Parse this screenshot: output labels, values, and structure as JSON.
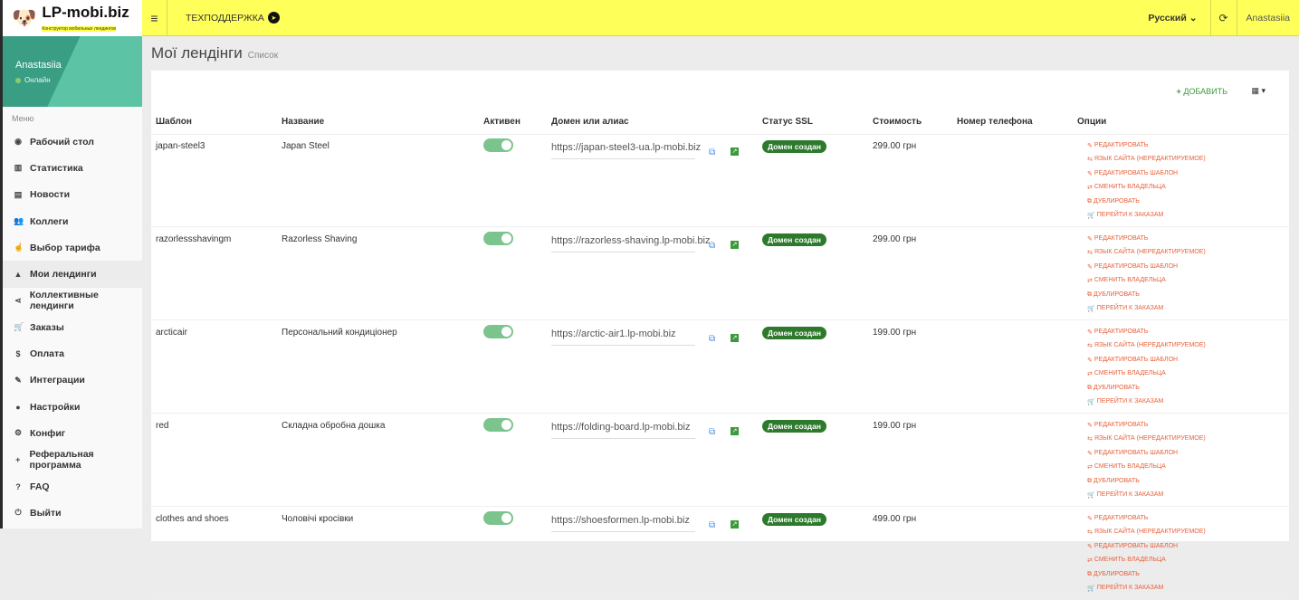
{
  "logo": {
    "brand": "LP-mobi.biz",
    "tagline": "Конструктор мобильных лендингов"
  },
  "user": {
    "name": "Anastasiia",
    "status": "Онлайн"
  },
  "menu_heading": "Меню",
  "menu": [
    {
      "label": "Рабочий стол",
      "icon": "dashboard-icon",
      "glyph": "◉"
    },
    {
      "label": "Статистика",
      "icon": "bar-chart-icon",
      "glyph": "▥"
    },
    {
      "label": "Новости",
      "icon": "newspaper-icon",
      "glyph": "▤"
    },
    {
      "label": "Коллеги",
      "icon": "users-icon",
      "glyph": "👥"
    },
    {
      "label": "Выбор тарифа",
      "icon": "hand-pointer-icon",
      "glyph": "☝"
    },
    {
      "label": "Мои лендинги",
      "icon": "landing-icon",
      "glyph": "▲"
    },
    {
      "label": "Коллективные лендинги",
      "icon": "share-icon",
      "glyph": "⋖"
    },
    {
      "label": "Заказы",
      "icon": "cart-icon",
      "glyph": "🛒"
    },
    {
      "label": "Оплата",
      "icon": "dollar-icon",
      "glyph": "$"
    },
    {
      "label": "Интеграции",
      "icon": "plug-icon",
      "glyph": "✎"
    },
    {
      "label": "Настройки",
      "icon": "user-icon",
      "glyph": "●"
    },
    {
      "label": "Конфиг",
      "icon": "cogs-icon",
      "glyph": "⚙"
    },
    {
      "label": "Реферальная программа",
      "icon": "user-plus-icon",
      "glyph": "+"
    },
    {
      "label": "FAQ",
      "icon": "question-icon",
      "glyph": "?"
    },
    {
      "label": "Выйти",
      "icon": "power-icon",
      "glyph": "⏻"
    }
  ],
  "header": {
    "support": "ТЕХПОДДЕРЖКА",
    "language": "Русский",
    "username": "Anastasiia"
  },
  "page": {
    "title": "Мої лендінги",
    "subtitle": "Список",
    "add": "ДОБАВИТЬ"
  },
  "columns": [
    "Шаблон",
    "Название",
    "Активен",
    "Домен или алиас",
    "Статус SSL",
    "Стоимость",
    "Номер телефона",
    "Опции"
  ],
  "options": [
    "РЕДАКТИРОВАТЬ",
    "ЯЗЫК САЙТА (НЕРЕДАКТИРУЕМОЕ)",
    "РЕДАКТИРОВАТЬ ШАБЛОН",
    "СМЕНИТЬ ВЛАДЕЛЬЦА",
    "ДУБЛИРОВАТЬ",
    "ПЕРЕЙТИ К ЗАКАЗАМ"
  ],
  "rows": [
    {
      "template": "japan-steel3",
      "name": "Japan Steel",
      "active": true,
      "domain": "https://japan-steel3-ua.lp-mobi.biz",
      "ssl": "Домен создан",
      "price": "299.00 грн",
      "phone": ""
    },
    {
      "template": "razorlessshavingm",
      "name": "Razorless Shaving",
      "active": true,
      "domain": "https://razorless-shaving.lp-mobi.biz",
      "ssl": "Домен создан",
      "price": "299.00 грн",
      "phone": ""
    },
    {
      "template": "arcticair",
      "name": "Персональний кондиціонер",
      "active": true,
      "domain": "https://arctic-air1.lp-mobi.biz",
      "ssl": "Домен создан",
      "price": "199.00 грн",
      "phone": ""
    },
    {
      "template": "red",
      "name": "Складна обробна дошка",
      "active": true,
      "domain": "https://folding-board.lp-mobi.biz",
      "ssl": "Домен создан",
      "price": "199.00 грн",
      "phone": ""
    },
    {
      "template": "clothes and shoes",
      "name": "Чоловічі кросівки",
      "active": true,
      "domain": "https://shoesformen.lp-mobi.biz",
      "ssl": "Домен создан",
      "price": "499.00 грн",
      "phone": ""
    }
  ],
  "colors": {
    "header": "#ffff5a",
    "sidebar_user": "#5cc4a5",
    "ssl_badge": "#2d7a2d",
    "option_link": "#e8613a",
    "toggle_on": "#7cc48d"
  }
}
